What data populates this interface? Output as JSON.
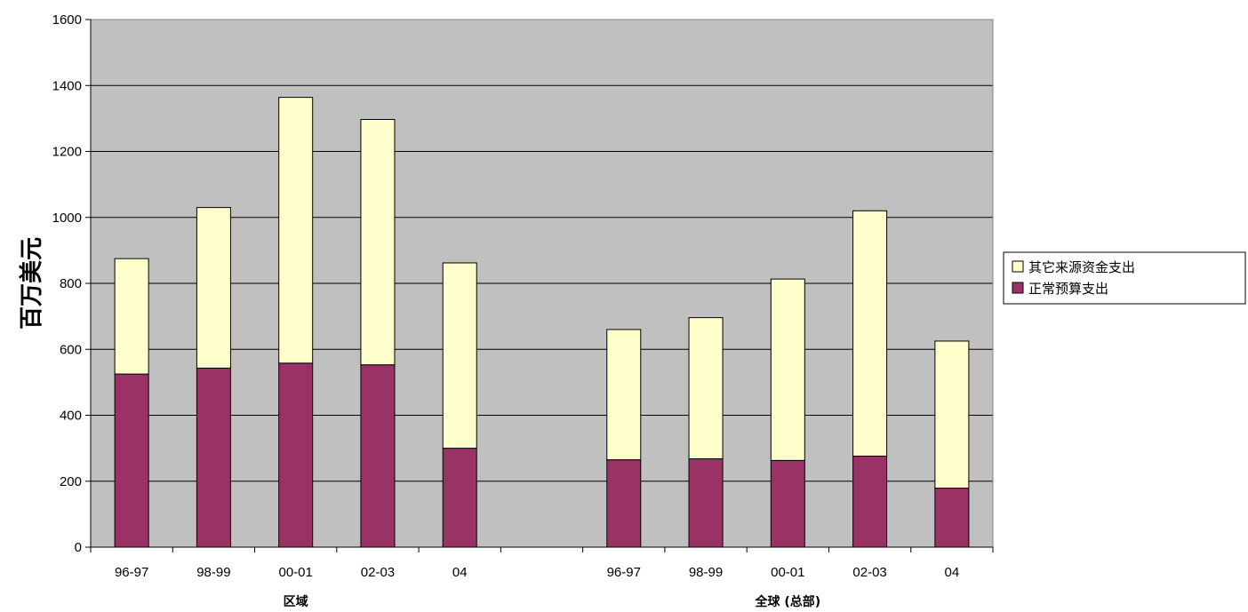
{
  "chart_data": {
    "type": "bar",
    "stacked": true,
    "ylabel": "百万美元",
    "ylim": [
      0,
      1600
    ],
    "yticks": [
      "0",
      "200",
      "400",
      "600",
      "800",
      "1000",
      "1200",
      "1400",
      "1600"
    ],
    "grid": true,
    "legend_position": "right",
    "colors": {
      "plot_bg": "#c0c0c0",
      "regular": "#993366",
      "other": "#ffffcc"
    },
    "categories": [
      "96-97",
      "98-99",
      "00-01",
      "02-03",
      "04",
      "",
      "96-97",
      "98-99",
      "00-01",
      "02-03",
      "04"
    ],
    "groups": [
      {
        "label": "区域",
        "span": [
          0,
          4
        ]
      },
      {
        "label": "全球 (总部)",
        "span": [
          6,
          10
        ]
      }
    ],
    "series": [
      {
        "name": "正常预算支出",
        "color": "#993366",
        "values": [
          525,
          543,
          558,
          553,
          300,
          null,
          265,
          268,
          263,
          276,
          179
        ]
      },
      {
        "name": "其它来源资金支出",
        "color": "#ffffcc",
        "values": [
          350,
          487,
          806,
          744,
          562,
          null,
          395,
          428,
          550,
          744,
          446
        ]
      }
    ],
    "legend": [
      "其它来源资金支出",
      "正常预算支出"
    ]
  }
}
